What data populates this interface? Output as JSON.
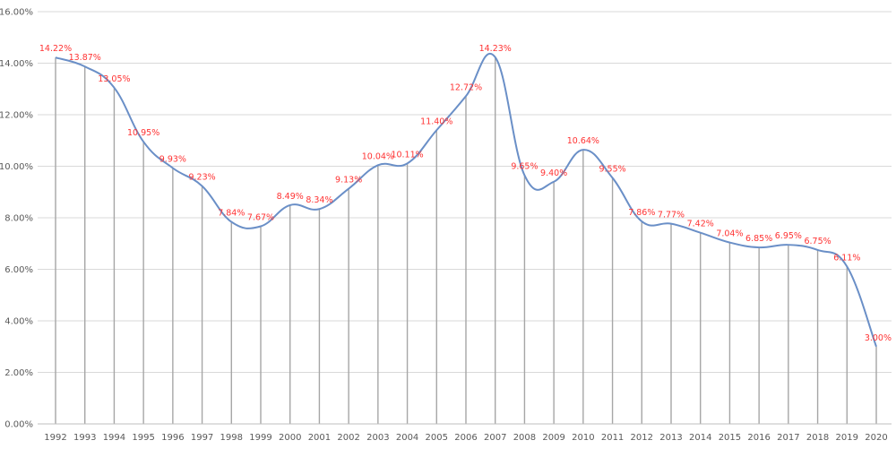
{
  "chart_data": {
    "type": "line",
    "x": [
      "1992",
      "1993",
      "1994",
      "1995",
      "1996",
      "1997",
      "1998",
      "1999",
      "2000",
      "2001",
      "2002",
      "2003",
      "2004",
      "2005",
      "2006",
      "2007",
      "2008",
      "2009",
      "2010",
      "2011",
      "2012",
      "2013",
      "2014",
      "2015",
      "2016",
      "2017",
      "2018",
      "2019",
      "2020"
    ],
    "values": [
      14.22,
      13.87,
      13.05,
      10.95,
      9.93,
      9.23,
      7.84,
      7.67,
      8.49,
      8.34,
      9.13,
      10.04,
      10.11,
      11.4,
      12.72,
      14.23,
      9.65,
      9.4,
      10.64,
      9.55,
      7.86,
      7.77,
      7.42,
      7.04,
      6.85,
      6.95,
      6.75,
      6.11,
      3.0
    ],
    "data_labels": [
      "14.22%",
      "13.87%",
      "13.05%",
      "10.95%",
      "9.93%",
      "9.23%",
      "7.84%",
      "7.67%",
      "8.49%",
      "8.34%",
      "9.13%",
      "10.04%",
      "10.11%",
      "11.40%",
      "12.72%",
      "14.23%",
      "9.65%",
      "9.40%",
      "10.64%",
      "9.55%",
      "7.86%",
      "7.77%",
      "7.42%",
      "7.04%",
      "6.85%",
      "6.95%",
      "6.75%",
      "6.11%",
      "3.00%"
    ],
    "y_ticks": [
      "0.00%",
      "2.00%",
      "4.00%",
      "6.00%",
      "8.00%",
      "10.00%",
      "12.00%",
      "14.00%",
      "16.00%"
    ],
    "ylim": [
      0,
      16
    ],
    "smooth": true,
    "drop_lines": true,
    "grid": true,
    "colors": {
      "line": "#6a8fc7",
      "labels": "#ff3333",
      "grid": "#d9d9d9",
      "drop": "#a6a6a6"
    }
  }
}
